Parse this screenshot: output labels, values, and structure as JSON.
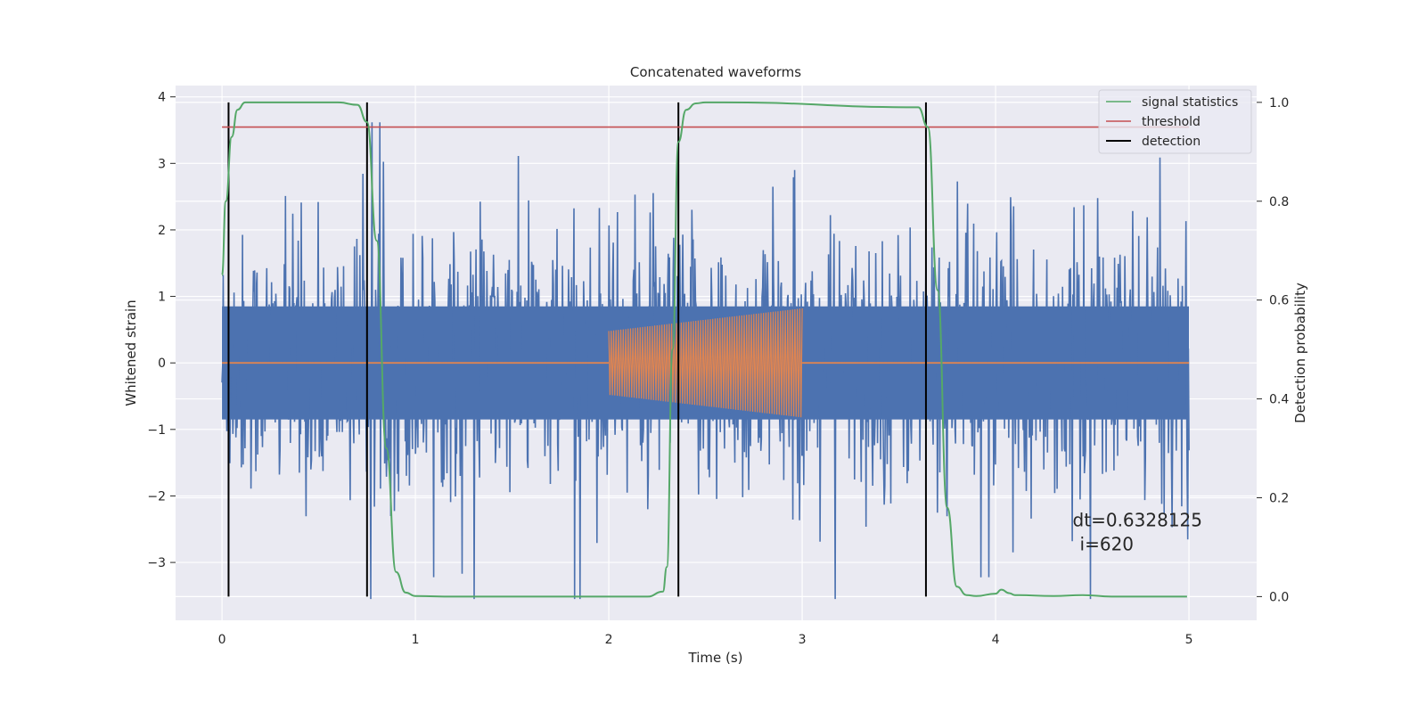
{
  "chart_data": {
    "type": "line",
    "title": "Concatenated waveforms",
    "xlabel": "Time (s)",
    "ylabel_left": "Whitened strain",
    "ylabel_right": "Detection probability",
    "xlim": [
      -0.24,
      5.35
    ],
    "ylim_left": [
      -3.87,
      4.17
    ],
    "ylim_right": [
      -0.048,
      1.034
    ],
    "x_ticks": [
      0,
      1,
      2,
      3,
      4,
      5
    ],
    "x_tick_labels": [
      "0",
      "1",
      "2",
      "3",
      "4",
      "5"
    ],
    "y_left_ticks": [
      -3,
      -2,
      -1,
      0,
      1,
      2,
      3,
      4
    ],
    "y_left_tick_labels": [
      "−3",
      "−2",
      "−1",
      "0",
      "1",
      "2",
      "3",
      "4"
    ],
    "y_right_ticks": [
      0.0,
      0.2,
      0.4,
      0.6,
      0.8,
      1.0
    ],
    "y_right_tick_labels": [
      "0.0",
      "0.2",
      "0.4",
      "0.6",
      "0.8",
      "1.0"
    ],
    "grid": true,
    "legend_position": "top-right",
    "series": [
      {
        "name": "",
        "axis": "left",
        "kind": "noise",
        "color": "#4c72b0",
        "x_range": [
          0,
          5
        ],
        "sample_count": 1600,
        "core_amplitude": 0.75,
        "peak_max": 3.8,
        "peak_min": -3.55
      },
      {
        "name": "",
        "axis": "left",
        "kind": "chirp",
        "color": "#dd8452",
        "x_range": [
          0,
          5
        ],
        "active_range": [
          2.0,
          3.0
        ],
        "amplitude_start": 0.48,
        "amplitude_end": 0.82,
        "cycles_visible": 80
      },
      {
        "name": "signal statistics",
        "axis": "right",
        "color": "#55a868",
        "x": [
          0.0,
          0.02,
          0.05,
          0.08,
          0.12,
          0.2,
          0.6,
          0.7,
          0.75,
          0.8,
          0.85,
          0.9,
          0.95,
          1.0,
          1.2,
          2.2,
          2.28,
          2.3,
          2.33,
          2.36,
          2.4,
          2.45,
          2.5,
          2.6,
          3.6,
          3.65,
          3.7,
          3.75,
          3.8,
          3.85,
          3.9,
          4.0,
          4.03,
          4.07,
          4.1,
          4.3,
          4.45,
          4.6,
          4.99
        ],
        "y": [
          0.65,
          0.8,
          0.93,
          0.985,
          1.0,
          1.0,
          1.0,
          0.995,
          0.96,
          0.72,
          0.3,
          0.05,
          0.008,
          0.001,
          0.0,
          0.0,
          0.01,
          0.06,
          0.5,
          0.92,
          0.985,
          0.998,
          1.0,
          1.0,
          0.99,
          0.95,
          0.62,
          0.18,
          0.02,
          0.003,
          0.001,
          0.006,
          0.014,
          0.007,
          0.003,
          0.001,
          0.003,
          0.0,
          0.0
        ]
      },
      {
        "name": "threshold",
        "axis": "right",
        "color": "#c44e52",
        "x": [
          0.0,
          5.0
        ],
        "y": [
          0.95,
          0.95
        ]
      },
      {
        "name": "detection",
        "axis": "right",
        "color": "#000000",
        "vlines": [
          0.034,
          0.75,
          2.36,
          3.64
        ],
        "ymin": 0.0,
        "ymax": 1.0
      }
    ],
    "annotation": {
      "line1": "dt=0.6328125",
      "line2": "i=620",
      "x": 4.5,
      "y_right": 0.11
    }
  }
}
